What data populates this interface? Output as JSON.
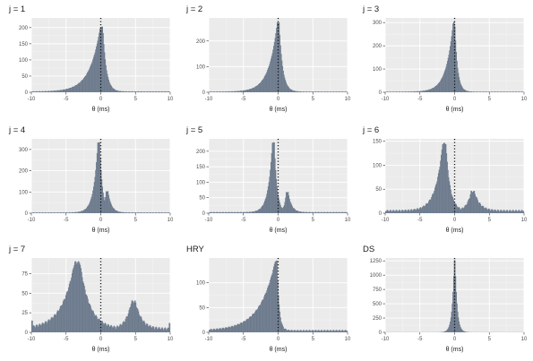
{
  "chart_data": [
    {
      "type": "histogram",
      "title": "j = 1",
      "xlabel": "θ (ms)",
      "ylabel": "",
      "xlim": [
        -10,
        10
      ],
      "ylim": [
        0,
        230
      ],
      "x_ticks": [
        -10,
        -5,
        0,
        5,
        10
      ],
      "y_ticks": [
        0,
        50,
        100,
        150,
        200
      ],
      "reference_line_x": 0,
      "peaks": [
        {
          "center": 0.1,
          "height": 200,
          "width": 0.4,
          "left_tail": 1.5,
          "right_tail": 0.5
        }
      ],
      "baseline": 3
    },
    {
      "type": "histogram",
      "title": "j = 2",
      "xlabel": "θ (ms)",
      "ylabel": "",
      "xlim": [
        -10,
        10
      ],
      "ylim": [
        0,
        290
      ],
      "x_ticks": [
        -10,
        -5,
        0,
        5,
        10
      ],
      "y_ticks": [
        0,
        100,
        200
      ],
      "reference_line_x": 0,
      "peaks": [
        {
          "center": 0,
          "height": 270,
          "width": 0.3,
          "left_tail": 1.2,
          "right_tail": 0.5
        }
      ],
      "baseline": 3
    },
    {
      "type": "histogram",
      "title": "j = 3",
      "xlabel": "θ (ms)",
      "ylabel": "",
      "xlim": [
        -10,
        10
      ],
      "ylim": [
        0,
        320
      ],
      "x_ticks": [
        -10,
        -5,
        0,
        5,
        10
      ],
      "y_ticks": [
        0,
        100,
        200,
        300
      ],
      "reference_line_x": 0,
      "peaks": [
        {
          "center": -0.1,
          "height": 300,
          "width": 0.25,
          "left_tail": 1.0,
          "right_tail": 0.4
        }
      ],
      "baseline": 3
    },
    {
      "type": "histogram",
      "title": "j = 4",
      "xlabel": "θ (ms)",
      "ylabel": "",
      "xlim": [
        -10,
        10
      ],
      "ylim": [
        0,
        350
      ],
      "x_ticks": [
        -10,
        -5,
        0,
        5,
        10
      ],
      "y_ticks": [
        0,
        100,
        200,
        300
      ],
      "reference_line_x": 0,
      "peaks": [
        {
          "center": -0.3,
          "height": 330,
          "width": 0.3,
          "left_tail": 0.6,
          "right_tail": 0.4
        },
        {
          "center": 0.9,
          "height": 100,
          "width": 0.3,
          "left_tail": 0.3,
          "right_tail": 0.5
        }
      ],
      "baseline": 4
    },
    {
      "type": "histogram",
      "title": "j = 5",
      "xlabel": "θ (ms)",
      "ylabel": "",
      "xlim": [
        -10,
        10
      ],
      "ylim": [
        0,
        240
      ],
      "x_ticks": [
        -10,
        -5,
        0,
        5,
        10
      ],
      "y_ticks": [
        0,
        50,
        100,
        150,
        200
      ],
      "reference_line_x": 0,
      "peaks": [
        {
          "center": -0.7,
          "height": 225,
          "width": 0.3,
          "left_tail": 0.6,
          "right_tail": 0.4
        },
        {
          "center": 1.3,
          "height": 65,
          "width": 0.3,
          "left_tail": 0.3,
          "right_tail": 0.5
        }
      ],
      "baseline": 4
    },
    {
      "type": "histogram",
      "title": "j = 6",
      "xlabel": "θ (ms)",
      "ylabel": "",
      "xlim": [
        -10,
        10
      ],
      "ylim": [
        0,
        155
      ],
      "x_ticks": [
        -10,
        -5,
        0,
        5,
        10
      ],
      "y_ticks": [
        0,
        50,
        100,
        150
      ],
      "reference_line_x": 0,
      "peaks": [
        {
          "center": -1.5,
          "height": 140,
          "width": 0.5,
          "left_tail": 1.0,
          "right_tail": 0.6
        },
        {
          "center": 2.6,
          "height": 40,
          "width": 0.5,
          "left_tail": 0.6,
          "right_tail": 0.8
        }
      ],
      "baseline": 7
    },
    {
      "type": "histogram",
      "title": "j = 7",
      "xlabel": "θ (ms)",
      "ylabel": "",
      "xlim": [
        -10,
        10
      ],
      "ylim": [
        0,
        95
      ],
      "x_ticks": [
        -10,
        -5,
        0,
        5,
        10
      ],
      "y_ticks": [
        0,
        25,
        50,
        75
      ],
      "reference_line_x": 0,
      "peaks": [
        {
          "center": -3.4,
          "height": 85,
          "width": 0.8,
          "left_tail": 1.8,
          "right_tail": 1.4
        },
        {
          "center": 4.7,
          "height": 35,
          "width": 0.6,
          "left_tail": 0.8,
          "right_tail": 0.9
        }
      ],
      "baseline": 6,
      "edge_spikes": [
        15,
        12
      ]
    },
    {
      "type": "histogram",
      "title": "HRY",
      "xlabel": "θ (ms)",
      "ylabel": "",
      "xlim": [
        -10,
        10
      ],
      "ylim": [
        0,
        150
      ],
      "x_ticks": [
        -10,
        -5,
        0,
        5,
        10
      ],
      "y_ticks": [
        0,
        50,
        100
      ],
      "reference_line_x": 0,
      "peaks": [
        {
          "center": -0.3,
          "height": 140,
          "width": 0.3,
          "left_tail": 2.2,
          "right_tail": 0.3
        }
      ],
      "baseline": 5
    },
    {
      "type": "histogram",
      "title": "DS",
      "xlabel": "θ (ms)",
      "ylabel": "",
      "xlim": [
        -10,
        10
      ],
      "ylim": [
        0,
        1300
      ],
      "x_ticks": [
        -10,
        -5,
        0,
        5,
        10
      ],
      "y_ticks": [
        0,
        250,
        500,
        750,
        1000,
        1250
      ],
      "reference_line_x": 0,
      "peaks": [
        {
          "center": 0,
          "height": 1260,
          "width": 0.15,
          "left_tail": 0.3,
          "right_tail": 0.3
        }
      ],
      "baseline": 3
    }
  ],
  "colors": {
    "bar_fill": "#6c7a8d",
    "panel_bg": "#ebebeb",
    "grid_major": "#ffffff",
    "grid_minor": "#f5f5f5",
    "ref_line": "#111111"
  }
}
